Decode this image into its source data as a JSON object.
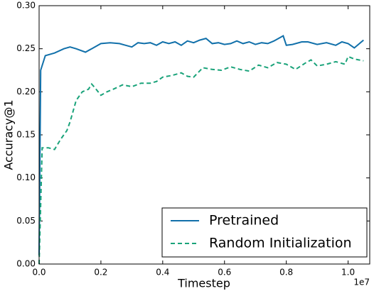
{
  "chart_data": {
    "type": "line",
    "xlabel": "Timestep",
    "ylabel": "Accuracy@1",
    "x_offset_label": "1e7",
    "xlim": [
      0,
      1.07
    ],
    "ylim": [
      0,
      0.3
    ],
    "xticks": [
      {
        "value": 0,
        "label": "0.0"
      },
      {
        "value": 0.2,
        "label": "0.2"
      },
      {
        "value": 0.4,
        "label": "0.4"
      },
      {
        "value": 0.6,
        "label": "0.6"
      },
      {
        "value": 0.8,
        "label": "0.8"
      },
      {
        "value": 1.0,
        "label": "1.0"
      }
    ],
    "yticks": [
      {
        "value": 0,
        "label": "0.00"
      },
      {
        "value": 0.05,
        "label": "0.05"
      },
      {
        "value": 0.1,
        "label": "0.10"
      },
      {
        "value": 0.15,
        "label": "0.15"
      },
      {
        "value": 0.2,
        "label": "0.20"
      },
      {
        "value": 0.25,
        "label": "0.25"
      },
      {
        "value": 0.3,
        "label": "0.30"
      }
    ],
    "legend": "lower right",
    "series": [
      {
        "name": "Pretrained",
        "color": "#1170aa",
        "dash": "solid",
        "x": [
          0,
          0.005,
          0.02,
          0.05,
          0.08,
          0.1,
          0.12,
          0.15,
          0.17,
          0.2,
          0.23,
          0.26,
          0.28,
          0.3,
          0.32,
          0.34,
          0.36,
          0.38,
          0.4,
          0.42,
          0.44,
          0.46,
          0.48,
          0.5,
          0.52,
          0.54,
          0.56,
          0.58,
          0.6,
          0.62,
          0.64,
          0.66,
          0.68,
          0.7,
          0.72,
          0.74,
          0.76,
          0.79,
          0.8,
          0.82,
          0.85,
          0.87,
          0.9,
          0.93,
          0.96,
          0.98,
          1.0,
          1.02,
          1.05
        ],
        "values": [
          0.01,
          0.225,
          0.242,
          0.245,
          0.25,
          0.252,
          0.25,
          0.246,
          0.25,
          0.256,
          0.257,
          0.256,
          0.254,
          0.252,
          0.257,
          0.256,
          0.257,
          0.254,
          0.258,
          0.256,
          0.258,
          0.254,
          0.259,
          0.257,
          0.26,
          0.262,
          0.256,
          0.257,
          0.255,
          0.256,
          0.259,
          0.256,
          0.258,
          0.255,
          0.257,
          0.256,
          0.259,
          0.265,
          0.254,
          0.255,
          0.258,
          0.258,
          0.255,
          0.257,
          0.254,
          0.258,
          0.256,
          0.251,
          0.26
        ]
      },
      {
        "name": "Random Initialization",
        "color": "#1aa37a",
        "dash": "dashed",
        "x": [
          0,
          0.01,
          0.03,
          0.05,
          0.07,
          0.09,
          0.1,
          0.12,
          0.14,
          0.16,
          0.17,
          0.18,
          0.2,
          0.22,
          0.24,
          0.27,
          0.3,
          0.33,
          0.36,
          0.38,
          0.4,
          0.43,
          0.46,
          0.48,
          0.5,
          0.53,
          0.56,
          0.59,
          0.62,
          0.65,
          0.68,
          0.71,
          0.74,
          0.77,
          0.8,
          0.83,
          0.86,
          0.88,
          0.9,
          0.93,
          0.96,
          0.99,
          1.0,
          1.02,
          1.05
        ],
        "values": [
          0.0,
          0.135,
          0.135,
          0.133,
          0.145,
          0.155,
          0.165,
          0.19,
          0.2,
          0.203,
          0.209,
          0.205,
          0.196,
          0.2,
          0.203,
          0.208,
          0.206,
          0.21,
          0.21,
          0.212,
          0.217,
          0.219,
          0.222,
          0.218,
          0.217,
          0.228,
          0.226,
          0.225,
          0.229,
          0.226,
          0.224,
          0.231,
          0.228,
          0.234,
          0.232,
          0.226,
          0.233,
          0.237,
          0.23,
          0.232,
          0.235,
          0.232,
          0.241,
          0.238,
          0.236
        ]
      }
    ]
  }
}
